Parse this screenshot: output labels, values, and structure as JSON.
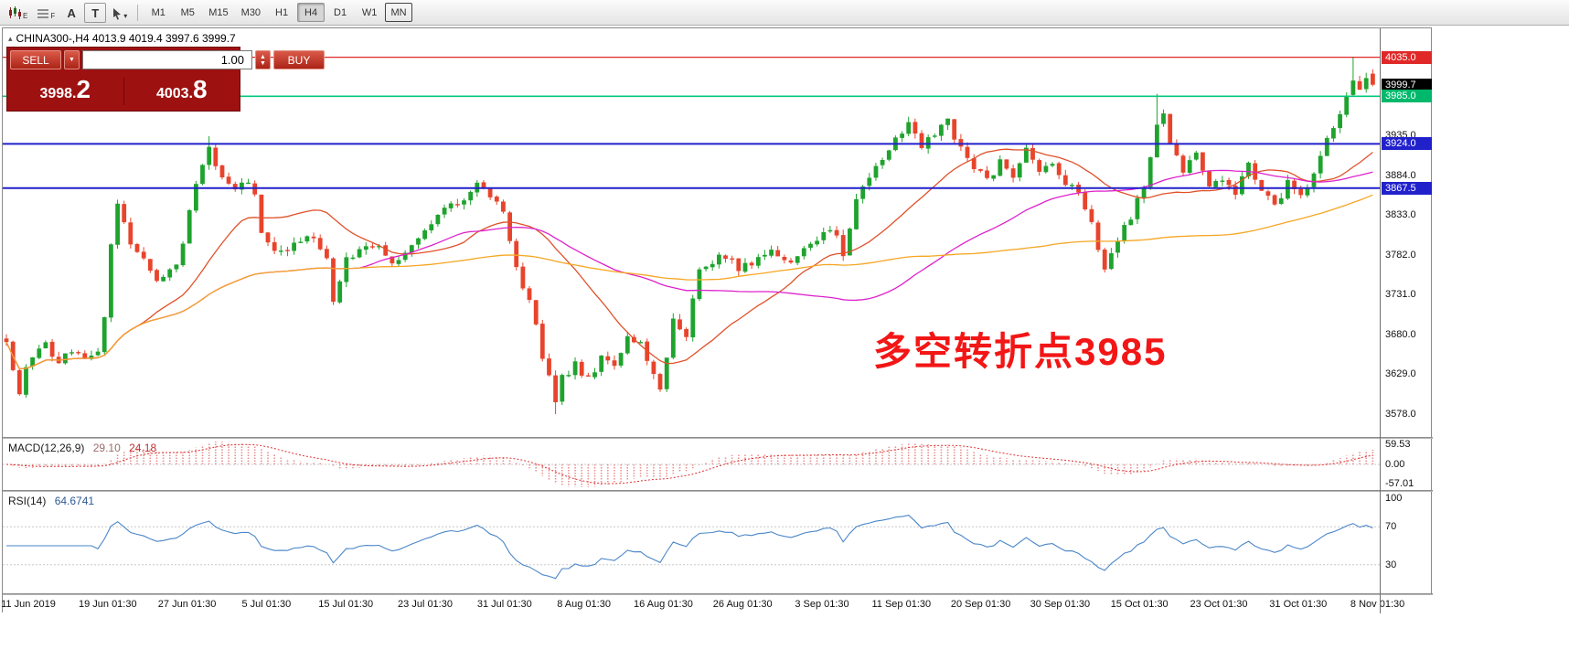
{
  "toolbar": {
    "icons": [
      "candlestick-chart-icon",
      "grid-chart-icon",
      "text-label-icon",
      "template-icon",
      "cursor-select-icon"
    ],
    "icon_badges": {
      "candlestick-chart-icon": "E",
      "grid-chart-icon": "F"
    },
    "timeframes": [
      "M1",
      "M5",
      "M15",
      "M30",
      "H1",
      "H4",
      "D1",
      "W1",
      "MN"
    ],
    "active_timeframe": "H4",
    "outlined_timeframe": "MN"
  },
  "chart": {
    "header_text": "CHINA300-,H4  4013.9 4019.4 3997.6 3999.7",
    "symbol": "CHINA300-",
    "period": "H4",
    "annotation": "多空转折点3985",
    "axis_tags": [
      {
        "label": "4035.0",
        "price": 4035.0,
        "bg": "#e02828"
      },
      {
        "label": "3999.7",
        "price": 3999.7,
        "bg": "#000000"
      },
      {
        "label": "3985.0",
        "price": 3985.0,
        "bg": "#00b86b"
      },
      {
        "label": "3924.0",
        "price": 3924.0,
        "bg": "#2121cc"
      },
      {
        "label": "3867.5",
        "price": 3867.5,
        "bg": "#2121cc"
      }
    ]
  },
  "trade_panel": {
    "sell_label": "SELL",
    "buy_label": "BUY",
    "volume": "1.00",
    "sell_price_main": "3998.",
    "sell_price_big": "2",
    "buy_price_main": "4003.",
    "buy_price_big": "8"
  },
  "macd_panel": {
    "label": "MACD(12,26,9)",
    "value_main": "29.10",
    "value_signal": "24.18"
  },
  "rsi_panel": {
    "label": "RSI(14)",
    "value": "64.6741"
  },
  "chart_data": {
    "type": "candlestick",
    "symbol": "CHINA300-",
    "timeframe": "H4",
    "title": "CHINA300-,H4",
    "last_bar": {
      "open": 4013.9,
      "high": 4019.4,
      "low": 3997.6,
      "close": 3999.7
    },
    "candle_count": 210,
    "y_range": [
      3549,
      4072
    ],
    "price_axis": {
      "labels": [
        3935.0,
        3884.0,
        3833.0,
        3782.0,
        3731.0,
        3680.0,
        3629.0,
        3578.0
      ]
    },
    "style": {
      "bull": "#1fa32e",
      "bear": "#e8442c",
      "background": "#ffffff"
    },
    "horizontal_levels": [
      {
        "price": 4035.0,
        "color": "#e02828",
        "width": 1.2
      },
      {
        "price": 3985.0,
        "color": "#00c87d",
        "width": 1.6
      },
      {
        "price": 3924.0,
        "color": "#2121cc",
        "width": 2
      },
      {
        "price": 3867.5,
        "color": "#2121cc",
        "width": 2
      }
    ],
    "current_price": 3999.7,
    "price_path_anchors": [
      [
        0,
        3675
      ],
      [
        1,
        3640
      ],
      [
        2,
        3600
      ],
      [
        3,
        3635
      ],
      [
        4,
        3645
      ],
      [
        6,
        3668
      ],
      [
        8,
        3638
      ],
      [
        10,
        3662
      ],
      [
        12,
        3645
      ],
      [
        14,
        3658
      ],
      [
        15,
        3705
      ],
      [
        16,
        3800
      ],
      [
        17,
        3845
      ],
      [
        19,
        3798
      ],
      [
        21,
        3778
      ],
      [
        23,
        3748
      ],
      [
        25,
        3758
      ],
      [
        27,
        3792
      ],
      [
        28,
        3842
      ],
      [
        30,
        3902
      ],
      [
        31,
        3918
      ],
      [
        33,
        3882
      ],
      [
        35,
        3862
      ],
      [
        36,
        3880
      ],
      [
        38,
        3862
      ],
      [
        39,
        3808
      ],
      [
        41,
        3790
      ],
      [
        43,
        3786
      ],
      [
        45,
        3802
      ],
      [
        47,
        3806
      ],
      [
        49,
        3778
      ],
      [
        50,
        3722
      ],
      [
        52,
        3775
      ],
      [
        54,
        3790
      ],
      [
        56,
        3796
      ],
      [
        58,
        3782
      ],
      [
        60,
        3772
      ],
      [
        62,
        3792
      ],
      [
        64,
        3816
      ],
      [
        66,
        3830
      ],
      [
        68,
        3846
      ],
      [
        70,
        3856
      ],
      [
        72,
        3872
      ],
      [
        74,
        3852
      ],
      [
        76,
        3842
      ],
      [
        78,
        3762
      ],
      [
        80,
        3722
      ],
      [
        82,
        3652
      ],
      [
        84,
        3596
      ],
      [
        85,
        3626
      ],
      [
        87,
        3642
      ],
      [
        89,
        3622
      ],
      [
        91,
        3652
      ],
      [
        93,
        3636
      ],
      [
        95,
        3672
      ],
      [
        97,
        3666
      ],
      [
        99,
        3632
      ],
      [
        100,
        3612
      ],
      [
        101,
        3652
      ],
      [
        102,
        3696
      ],
      [
        104,
        3682
      ],
      [
        106,
        3766
      ],
      [
        108,
        3776
      ],
      [
        110,
        3782
      ],
      [
        112,
        3766
      ],
      [
        114,
        3772
      ],
      [
        116,
        3786
      ],
      [
        118,
        3780
      ],
      [
        120,
        3776
      ],
      [
        122,
        3786
      ],
      [
        124,
        3800
      ],
      [
        126,
        3816
      ],
      [
        128,
        3786
      ],
      [
        130,
        3852
      ],
      [
        132,
        3882
      ],
      [
        134,
        3906
      ],
      [
        136,
        3932
      ],
      [
        138,
        3952
      ],
      [
        140,
        3922
      ],
      [
        142,
        3940
      ],
      [
        144,
        3952
      ],
      [
        146,
        3916
      ],
      [
        148,
        3892
      ],
      [
        150,
        3876
      ],
      [
        152,
        3902
      ],
      [
        154,
        3876
      ],
      [
        156,
        3922
      ],
      [
        158,
        3886
      ],
      [
        160,
        3902
      ],
      [
        162,
        3876
      ],
      [
        164,
        3856
      ],
      [
        166,
        3822
      ],
      [
        168,
        3766
      ],
      [
        170,
        3802
      ],
      [
        172,
        3832
      ],
      [
        174,
        3866
      ],
      [
        176,
        3952
      ],
      [
        177,
        3962
      ],
      [
        178,
        3926
      ],
      [
        180,
        3892
      ],
      [
        182,
        3916
      ],
      [
        184,
        3866
      ],
      [
        186,
        3882
      ],
      [
        188,
        3862
      ],
      [
        190,
        3896
      ],
      [
        192,
        3862
      ],
      [
        194,
        3842
      ],
      [
        196,
        3872
      ],
      [
        198,
        3862
      ],
      [
        200,
        3886
      ],
      [
        202,
        3926
      ],
      [
        204,
        3962
      ],
      [
        206,
        4004
      ],
      [
        207,
        3992
      ],
      [
        208,
        4014
      ],
      [
        209,
        3999.7
      ]
    ],
    "wick_overrides": {
      "31": {
        "high": 3934
      },
      "84": {
        "low": 3578
      },
      "176": {
        "high": 3988
      },
      "206": {
        "high": 4035
      }
    },
    "moving_averages": [
      {
        "name": "fast-ma",
        "period": 21,
        "color": "#e0512a"
      },
      {
        "name": "medium-ma",
        "period": 55,
        "color": "#dd22cc"
      },
      {
        "name": "slow-ma",
        "period": 110,
        "color": "#f5a623"
      }
    ],
    "macd": {
      "fast": 12,
      "slow": 26,
      "signal": 9,
      "current_main": 29.1,
      "current_signal": 24.18,
      "axis_labels": [
        59.53,
        0.0,
        -57.01
      ],
      "histogram_color": "#e89090",
      "signal_color": "#e03030"
    },
    "rsi": {
      "period": 14,
      "current": 64.6741,
      "axis_labels": [
        100,
        70,
        30
      ],
      "level_lines": [
        70,
        30
      ],
      "line_color": "#4a86c8"
    },
    "time_labels": [
      "11 Jun 2019",
      "19 Jun 01:30",
      "27 Jun 01:30",
      "5 Jul 01:30",
      "15 Jul 01:30",
      "23 Jul 01:30",
      "31 Jul 01:30",
      "8 Aug 01:30",
      "16 Aug 01:30",
      "26 Aug 01:30",
      "3 Sep 01:30",
      "11 Sep 01:30",
      "20 Sep 01:30",
      "30 Sep 01:30",
      "15 Oct 01:30",
      "23 Oct 01:30",
      "31 Oct 01:30",
      "8 Nov 01:30"
    ]
  }
}
